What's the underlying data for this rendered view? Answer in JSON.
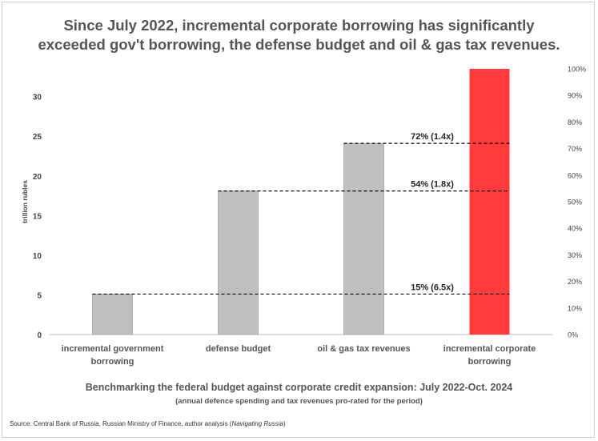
{
  "header": {
    "title_line1": "Since July 2022, incremental corporate borrowing has significantly",
    "title_line2": "exceeded gov't borrowing, the defense budget and oil & gas tax revenues."
  },
  "footer": {
    "subtitle": "Benchmarking  the federal budget against corporate credit expansion: July 2022-Oct. 2024",
    "note": "(annual defence spending and tax revenues pro-rated for the period)",
    "source_prefix": "Source: Central Bank of Russia, Russian Ministry of Finance, author analysis (",
    "source_italic": "Navigating Russia",
    "source_suffix": ")"
  },
  "chart_data": {
    "type": "bar",
    "categories": [
      [
        "incremental government",
        "borrowing"
      ],
      [
        "defense budget"
      ],
      [
        "oil & gas tax revenues"
      ],
      [
        "incremental corporate",
        "borrowing"
      ]
    ],
    "values": [
      5.1,
      18.1,
      24.1,
      33.5
    ],
    "bar_colors": [
      "#bfbfbf",
      "#bfbfbf",
      "#bfbfbf",
      "#ff3b3b"
    ],
    "ylabel": "trillion rubles",
    "ylim": [
      0,
      33.5
    ],
    "yticks": [
      0,
      5,
      10,
      15,
      20,
      25,
      30
    ],
    "y2lim": [
      0,
      100
    ],
    "y2ticks": [
      "0%",
      "10%",
      "20%",
      "30%",
      "40%",
      "50%",
      "60%",
      "70%",
      "80%",
      "90%",
      "100%"
    ],
    "reference_lines": [
      {
        "value": 5.1,
        "from_category": 0,
        "label": "15%  (6.5x)"
      },
      {
        "value": 18.1,
        "from_category": 1,
        "label": "54%  (1.8x)"
      },
      {
        "value": 24.1,
        "from_category": 2,
        "label": "72%  (1.4x)"
      }
    ],
    "grid": false
  }
}
